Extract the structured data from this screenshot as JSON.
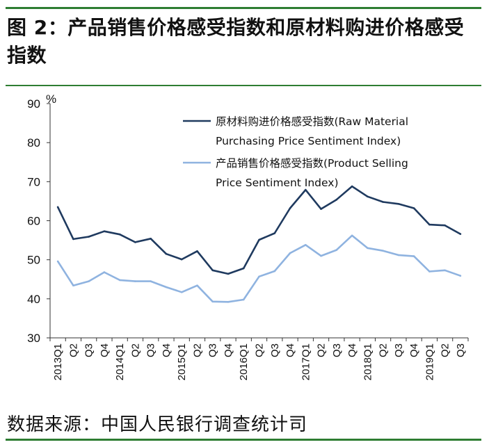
{
  "figure": {
    "title": "图 2：产品销售价格感受指数和原材料购进价格感受指数",
    "source": "数据来源：中国人民银行调查统计司"
  },
  "chart_data": {
    "type": "line",
    "title": "图 2：产品销售价格感受指数和原材料购进价格感受指数",
    "ylabel": "%",
    "xlabel": "",
    "ylim": [
      30,
      90
    ],
    "yticks": [
      30,
      40,
      50,
      60,
      70,
      80,
      90
    ],
    "grid": false,
    "legend_position": "top-right",
    "categories": [
      "2013Q1",
      "Q2",
      "Q3",
      "Q4",
      "2014Q1",
      "Q2",
      "Q3",
      "Q4",
      "2015Q1",
      "Q2",
      "Q3",
      "Q4",
      "2016Q1",
      "Q2",
      "Q3",
      "Q4",
      "2017Q1",
      "Q2",
      "Q3",
      "Q4",
      "2018Q1",
      "Q2",
      "Q3",
      "Q4",
      "2019Q1",
      "Q2",
      "Q3"
    ],
    "series": [
      {
        "name": "原材料购进价格感受指数(Raw Material Purchasing Price Sentiment Index)",
        "legend_lines": [
          "原材料购进价格感受指数(Raw  Material",
          "Purchasing Price Sentiment Index)"
        ],
        "color": "#1f3a5f",
        "values": [
          63.5,
          55.3,
          55.9,
          57.3,
          56.5,
          54.5,
          55.4,
          51.5,
          50.1,
          52.2,
          47.3,
          46.4,
          47.8,
          55.1,
          56.8,
          63.2,
          67.9,
          63.0,
          65.4,
          68.8,
          66.2,
          64.8,
          64.3,
          63.2,
          59.0,
          58.8,
          56.6
        ]
      },
      {
        "name": "产品销售价格感受指数(Product Selling Price Sentiment Index)",
        "legend_lines": [
          "产品销售价格感受指数(Product Selling",
          "Price Sentiment Index)"
        ],
        "color": "#8fb3e0",
        "values": [
          49.6,
          43.4,
          44.5,
          46.8,
          44.8,
          44.5,
          44.5,
          43.0,
          41.7,
          43.4,
          39.3,
          39.2,
          39.8,
          45.7,
          47.1,
          51.7,
          53.8,
          51.0,
          52.5,
          56.2,
          53.0,
          52.3,
          51.2,
          50.9,
          47.0,
          47.3,
          45.9
        ]
      }
    ]
  }
}
